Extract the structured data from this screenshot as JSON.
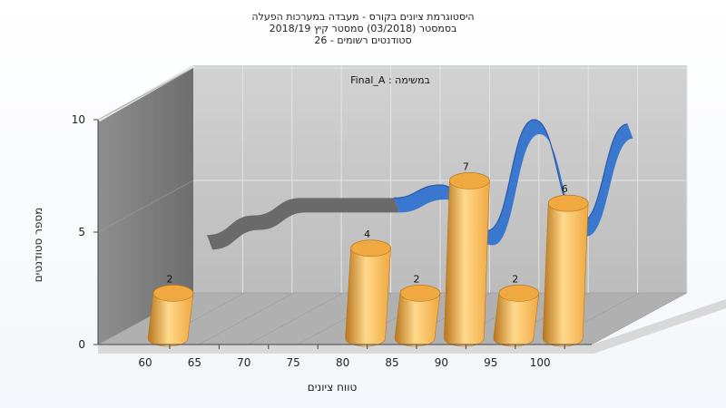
{
  "chart_data": {
    "type": "bar",
    "title": "היסטוגרמת ציונים בקורס - מעבדה במערכות הפעלה",
    "subtitle": "בסמסטר  (03/2018)  סמסטר קיץ  2018/19",
    "subtitle2": "סטודנטים רשומים - 26",
    "inner_title": "Final_A : במשימה",
    "xlabel": "טווח ציונים",
    "ylabel": "מספר סטודנטים",
    "ylim": [
      0,
      10
    ],
    "y_ticks": [
      "0",
      "5",
      "10"
    ],
    "x_ticks": [
      "60",
      "65",
      "70",
      "75",
      "80",
      "85",
      "90",
      "95",
      "100"
    ],
    "series": [
      {
        "values": [
          2,
          0,
          0,
          0,
          4,
          2,
          7,
          2,
          6
        ],
        "labels": [
          "2",
          "",
          "",
          "",
          "4",
          "2",
          "7",
          "2",
          "6"
        ]
      }
    ],
    "curve": [
      3.2,
      4.1,
      4.9,
      4.9,
      4.9,
      5.5,
      3.4,
      8.5,
      3.8,
      8.3
    ],
    "colors": {
      "bar_light": "#ffd98c",
      "bar_mid": "#f0a840",
      "bar_dark": "#b8741c",
      "curve": "#3a78d0",
      "curve_dark": "#2a5aa8",
      "curve_gray": "#6a6a6a",
      "back_wall": "#c4c4c4",
      "side_wall": "#7e7e7e",
      "floor": "#b4b4b4"
    }
  }
}
